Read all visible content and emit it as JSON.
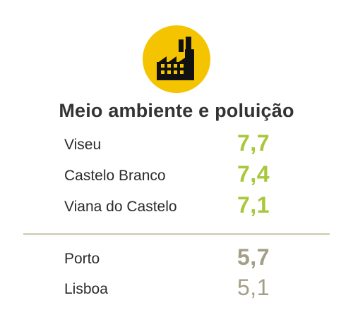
{
  "header": {
    "icon": "factory-icon",
    "title": "Meio ambiente e poluição"
  },
  "top_ranking": [
    {
      "name": "Viseu",
      "value": "7,7"
    },
    {
      "name": "Castelo Branco",
      "value": "7,4"
    },
    {
      "name": "Viana do Castelo",
      "value": "7,1"
    }
  ],
  "bottom_ranking": [
    {
      "name": "Porto",
      "value": "5,7"
    },
    {
      "name": "Lisboa",
      "value": "5,1"
    }
  ],
  "colors": {
    "icon_bg": "#f5c400",
    "top_value": "#a9c73a",
    "bottom_value": "#a39f86",
    "divider": "#d6d4bd"
  }
}
